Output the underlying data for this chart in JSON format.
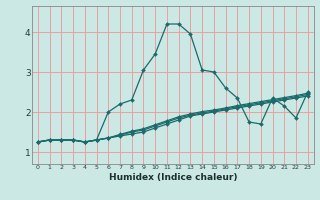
{
  "xlabel": "Humidex (Indice chaleur)",
  "bg_color": "#cce8e4",
  "grid_color": "#e8a0a0",
  "line_color": "#1a6b6b",
  "xlim": [
    -0.5,
    23.5
  ],
  "ylim": [
    0.7,
    4.65
  ],
  "xticks": [
    0,
    1,
    2,
    3,
    4,
    5,
    6,
    7,
    8,
    9,
    10,
    11,
    12,
    13,
    14,
    15,
    16,
    17,
    18,
    19,
    20,
    21,
    22,
    23
  ],
  "yticks": [
    1,
    2,
    3,
    4
  ],
  "series": [
    [
      1.25,
      1.3,
      1.3,
      1.3,
      1.25,
      1.3,
      2.0,
      2.2,
      2.3,
      3.05,
      3.45,
      4.2,
      4.2,
      3.95,
      3.05,
      3.0,
      2.6,
      2.35,
      1.75,
      1.7,
      2.35,
      2.15,
      1.85,
      2.5
    ],
    [
      1.25,
      1.3,
      1.3,
      1.3,
      1.25,
      1.3,
      1.35,
      1.4,
      1.45,
      1.5,
      1.6,
      1.7,
      1.8,
      1.9,
      1.95,
      2.0,
      2.05,
      2.1,
      2.15,
      2.2,
      2.25,
      2.3,
      2.35,
      2.4
    ],
    [
      1.25,
      1.3,
      1.3,
      1.3,
      1.25,
      1.3,
      1.35,
      1.42,
      1.5,
      1.55,
      1.65,
      1.75,
      1.85,
      1.92,
      1.98,
      2.02,
      2.08,
      2.13,
      2.18,
      2.23,
      2.28,
      2.33,
      2.38,
      2.44
    ],
    [
      1.25,
      1.3,
      1.3,
      1.3,
      1.25,
      1.3,
      1.35,
      1.44,
      1.52,
      1.58,
      1.68,
      1.78,
      1.88,
      1.95,
      2.01,
      2.05,
      2.1,
      2.16,
      2.21,
      2.26,
      2.31,
      2.36,
      2.41,
      2.47
    ]
  ]
}
